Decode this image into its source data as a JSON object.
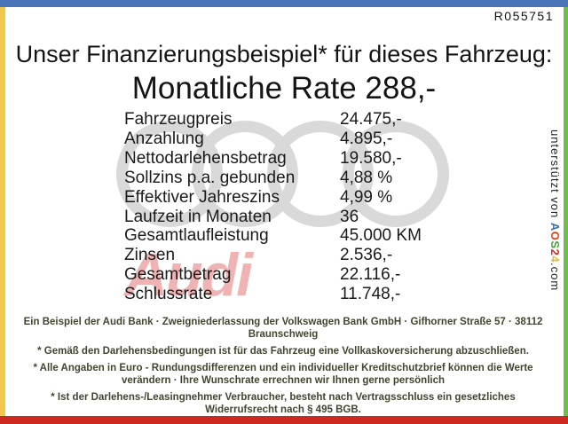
{
  "page": {
    "ref_number": "R055751",
    "title": "Unser Finanzierungsbeispiel* für dieses Fahrzeug:",
    "rate_line": "Monatliche Rate 288,-"
  },
  "table": {
    "rows": [
      {
        "label": "Fahrzeugpreis",
        "value": "24.475,-"
      },
      {
        "label": "Anzahlung",
        "value": "4.895,-"
      },
      {
        "label": "Nettodarlehensbetrag",
        "value": "19.580,-"
      },
      {
        "label": "Sollzins p.a. gebunden",
        "value": "4,88 %"
      },
      {
        "label": "Effektiver Jahreszins",
        "value": "4,99 %"
      },
      {
        "label": "Laufzeit in Monaten",
        "value": "36"
      },
      {
        "label": "Gesamtlaufleistung",
        "value": "45.000 KM"
      },
      {
        "label": "Zinsen",
        "value": "2.536,-"
      },
      {
        "label": "Gesamtbetrag",
        "value": "22.116,-"
      },
      {
        "label": "Schlussrate",
        "value": "11.748,-"
      }
    ]
  },
  "footer": {
    "text_color": "#42462f",
    "paragraphs": [
      {
        "lines": [
          "Ein Beispiel der Audi Bank · Zweigniederlassung der Volkswagen Bank GmbH · Gifhorner Straße 57 · 38112",
          "Braunschweig"
        ]
      },
      {
        "lines": [
          "* Gemäß den Darlehensbedingungen ist für das Fahrzeug eine Vollkaskoversicherung abzuschließen."
        ]
      },
      {
        "lines": [
          "* Alle Angaben in Euro - Rundungsdifferenzen und ein individueller Kreditschutzbrief können die Werte",
          "verändern · Ihre Wunschrate errechnen wir Ihnen gerne persönlich"
        ]
      },
      {
        "lines": [
          "* Ist der Darlehens-/Leasingnehmer Verbraucher, besteht nach Vertragsschluss ein gesetzliches",
          "Widerrufsrecht nach § 495 BGB."
        ]
      }
    ]
  },
  "supporter": {
    "prefix": "unterstützt von ",
    "suffix": ".com",
    "logo_letters": [
      {
        "ch": "A",
        "color": "#3a6db8"
      },
      {
        "ch": "O",
        "color": "#e2401d"
      },
      {
        "ch": "S",
        "color": "#3fa63c"
      },
      {
        "ch": "2",
        "color": "#d92b26"
      },
      {
        "ch": "4",
        "color": "#edb923"
      }
    ]
  },
  "watermark": {
    "audi_text": "Audi",
    "audi_text_color": "#f0b3b4",
    "rings_color": "#d9d9d9"
  },
  "frame": {
    "top_color": "#4a74b8",
    "left_color": "#f2c74e",
    "right_color": "#6dc145",
    "bottom_color": "#cc2a20"
  }
}
